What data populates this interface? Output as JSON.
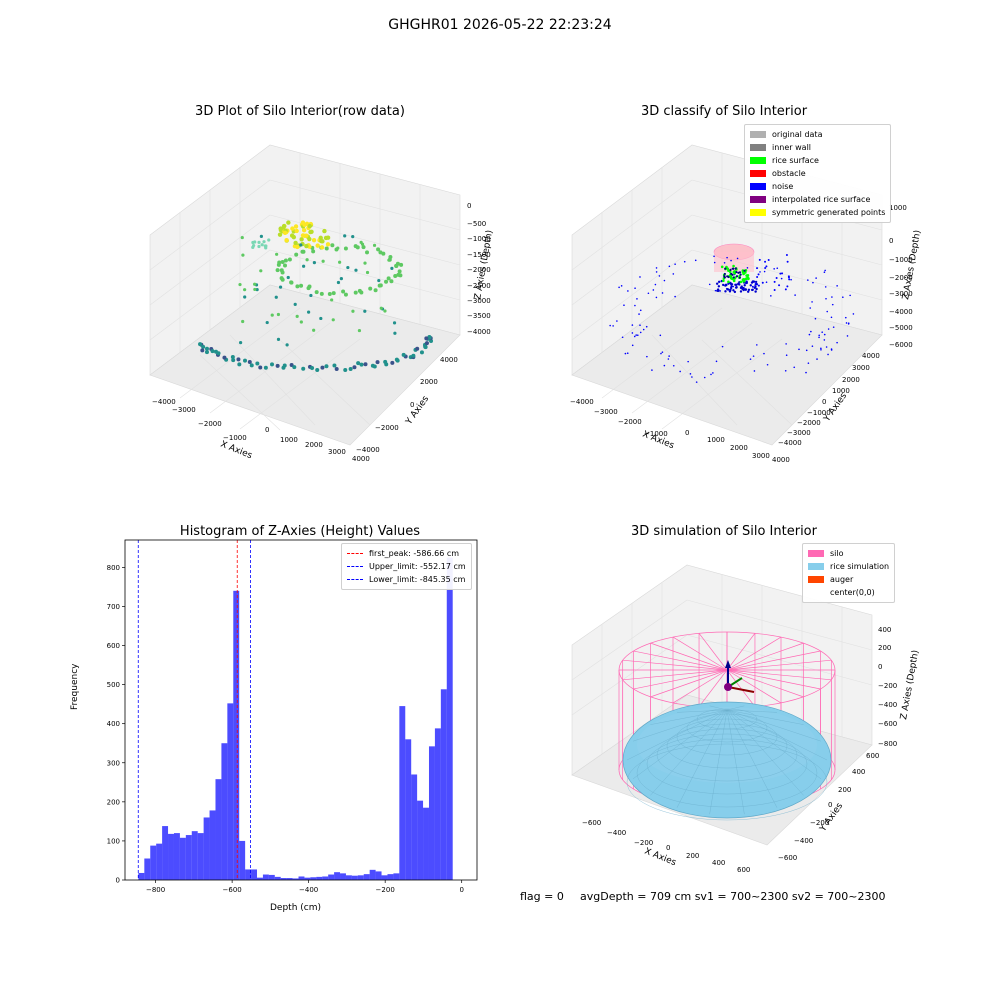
{
  "figure": {
    "suptitle": "GHGHR01 2026-05-22 22:23:24"
  },
  "chart_data": [
    {
      "type": "scatter",
      "title": "3D Plot of Silo Interior(row data)",
      "xlabel": "X Axies",
      "ylabel": "Y Axies",
      "zlabel": "Z Axies (Depth)",
      "x_ticks": [
        -4000,
        -3000,
        -2000,
        -1000,
        0,
        1000,
        2000,
        3000,
        4000
      ],
      "y_ticks": [
        -4000,
        -2000,
        0,
        2000,
        4000
      ],
      "z_ticks": [
        0,
        -500,
        -1000,
        -1500,
        -2000,
        -2500,
        -3000,
        -3500,
        -4000
      ],
      "colormap": "viridis"
    },
    {
      "type": "scatter",
      "title": "3D classify of Silo Interior",
      "xlabel": "X Axies",
      "ylabel": "Y Axies",
      "zlabel": "Z Axies (Depth)",
      "x_ticks": [
        -4000,
        -3000,
        -2000,
        -1000,
        0,
        1000,
        2000,
        3000,
        4000
      ],
      "y_ticks": [
        -4000,
        -3000,
        -2000,
        -1000,
        0,
        1000,
        2000,
        3000,
        4000
      ],
      "z_ticks": [
        1000,
        0,
        -1000,
        -2000,
        -3000,
        -4000,
        -5000,
        -6000
      ],
      "legend": [
        {
          "label": "original data",
          "color": "#b0b0b0"
        },
        {
          "label": "inner wall",
          "color": "#808080"
        },
        {
          "label": "rice surface",
          "color": "#00ff00"
        },
        {
          "label": "obstacle",
          "color": "#ff0000"
        },
        {
          "label": "noise",
          "color": "#0000ff"
        },
        {
          "label": "interpolated rice surface",
          "color": "#800080"
        },
        {
          "label": "symmetric generated points",
          "color": "#ffff00"
        }
      ]
    },
    {
      "type": "bar",
      "title": "Histogram of Z-Axies (Height) Values",
      "xlabel": "Depth (cm)",
      "ylabel": "Frequency",
      "xlim": [
        -880,
        40
      ],
      "ylim": [
        0,
        870
      ],
      "x_ticks": [
        -800,
        -600,
        -400,
        -200,
        0
      ],
      "y_ticks": [
        0,
        100,
        200,
        300,
        400,
        500,
        600,
        700,
        800
      ],
      "bar_color": "#0000ff",
      "bin_width": 15.5,
      "bins": [
        {
          "x": -845,
          "y": 18
        },
        {
          "x": -829.5,
          "y": 55
        },
        {
          "x": -814,
          "y": 88
        },
        {
          "x": -798.5,
          "y": 93
        },
        {
          "x": -783,
          "y": 138
        },
        {
          "x": -767.5,
          "y": 118
        },
        {
          "x": -752,
          "y": 120
        },
        {
          "x": -736.5,
          "y": 108
        },
        {
          "x": -721,
          "y": 115
        },
        {
          "x": -705.5,
          "y": 125
        },
        {
          "x": -690,
          "y": 120
        },
        {
          "x": -674.5,
          "y": 160
        },
        {
          "x": -659,
          "y": 178
        },
        {
          "x": -643.5,
          "y": 258
        },
        {
          "x": -628,
          "y": 350
        },
        {
          "x": -612.5,
          "y": 452
        },
        {
          "x": -597,
          "y": 740
        },
        {
          "x": -581.5,
          "y": 100
        },
        {
          "x": -566,
          "y": 27
        },
        {
          "x": -550.5,
          "y": 27
        },
        {
          "x": -535,
          "y": 6
        },
        {
          "x": -519.5,
          "y": 14
        },
        {
          "x": -504,
          "y": 13
        },
        {
          "x": -488.5,
          "y": 8
        },
        {
          "x": -473,
          "y": 5
        },
        {
          "x": -457.5,
          "y": 5
        },
        {
          "x": -442,
          "y": 4
        },
        {
          "x": -426.5,
          "y": 9
        },
        {
          "x": -411,
          "y": 6
        },
        {
          "x": -395.5,
          "y": 7
        },
        {
          "x": -380,
          "y": 8
        },
        {
          "x": -364.5,
          "y": 9
        },
        {
          "x": -349,
          "y": 14
        },
        {
          "x": -333.5,
          "y": 20
        },
        {
          "x": -318,
          "y": 17
        },
        {
          "x": -302.5,
          "y": 12
        },
        {
          "x": -287,
          "y": 11
        },
        {
          "x": -271.5,
          "y": 12
        },
        {
          "x": -256,
          "y": 15
        },
        {
          "x": -240.5,
          "y": 26
        },
        {
          "x": -225,
          "y": 22
        },
        {
          "x": -209.5,
          "y": 12
        },
        {
          "x": -194,
          "y": 15
        },
        {
          "x": -178.5,
          "y": 17
        },
        {
          "x": -163,
          "y": 445
        },
        {
          "x": -147.5,
          "y": 360
        },
        {
          "x": -132,
          "y": 270
        },
        {
          "x": -116.5,
          "y": 203
        },
        {
          "x": -101,
          "y": 185
        },
        {
          "x": -85.5,
          "y": 342
        },
        {
          "x": -70,
          "y": 388
        },
        {
          "x": -54.5,
          "y": 488
        },
        {
          "x": -39,
          "y": 825
        }
      ],
      "lines": [
        {
          "label": "first_peak: -586.66 cm",
          "x": -586.66,
          "color": "#ff0000"
        },
        {
          "label": "Upper_limit: -552.17 cm",
          "x": -552.17,
          "color": "#0000ff"
        },
        {
          "label": "Lower_limit: -845.35 cm",
          "x": -845.35,
          "color": "#0000ff"
        }
      ]
    },
    {
      "type": "surface",
      "title": "3D simulation of Silo Interior",
      "xlabel": "X Axies",
      "ylabel": "Y Axies",
      "zlabel": "Z Axies (Depth)",
      "x_ticks": [
        -600,
        -400,
        -200,
        0,
        200,
        400,
        600
      ],
      "y_ticks": [
        -600,
        -400,
        -200,
        0,
        200,
        400,
        600
      ],
      "z_ticks": [
        400,
        200,
        0,
        -200,
        -400,
        -600,
        -800
      ],
      "legend": [
        {
          "label": "silo",
          "color": "#ff69b4"
        },
        {
          "label": "rice simulation",
          "color": "#87ceeb"
        },
        {
          "label": "auger",
          "color": "#ff4500"
        },
        {
          "label": "center(0,0)",
          "color": "#ffffff"
        }
      ]
    }
  ],
  "footer": {
    "flag": "flag = 0",
    "avg": "avgDepth = 709 cm  sv1 = 700~2300  sv2 = 700~2300"
  }
}
